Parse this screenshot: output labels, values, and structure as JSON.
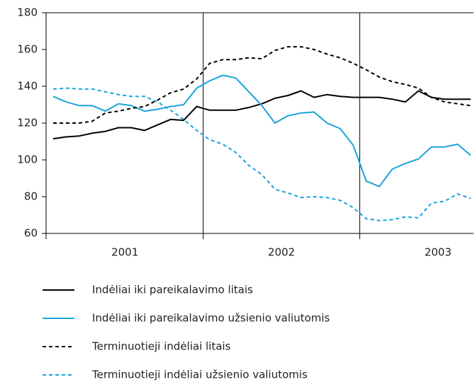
{
  "chart_data": {
    "type": "line",
    "categories": [
      null,
      null,
      null,
      null,
      null,
      null,
      "2001",
      null,
      null,
      null,
      null,
      null,
      null,
      null,
      null,
      null,
      null,
      null,
      "2002",
      null,
      null,
      null,
      null,
      null,
      null,
      null,
      null,
      null,
      null,
      null,
      "2003",
      null,
      null
    ],
    "ylim": [
      60,
      180
    ],
    "yticks": [
      60,
      80,
      100,
      120,
      140,
      160,
      180
    ],
    "series": [
      {
        "name": "Indėliai iki pareikalavimo litais",
        "color": "#000000",
        "dash": false,
        "values": [
          111.5,
          112.5,
          113,
          114.5,
          115.5,
          117.5,
          117.5,
          116,
          119,
          122,
          121.5,
          129,
          127,
          127,
          127,
          128.5,
          130.5,
          133.5,
          135,
          137.5,
          134,
          135.5,
          134.5,
          134,
          134,
          134,
          133,
          131.5,
          137.5,
          134,
          133,
          133,
          133
        ]
      },
      {
        "name": "Indėliai iki pareikalavimo užsienio valiutomis",
        "color": "#1aa3dc",
        "dash": false,
        "values": [
          134.5,
          131.5,
          129.5,
          129.5,
          126.5,
          130.5,
          129.5,
          126.5,
          127.5,
          129,
          130,
          139,
          143,
          146,
          144.5,
          137,
          129.5,
          120,
          124,
          125.5,
          126,
          120,
          117,
          108,
          88.5,
          85.5,
          95,
          98,
          100.5,
          107,
          107,
          108.5,
          102.5
        ]
      },
      {
        "name": "Terminuotieji indėliai litais",
        "color": "#000000",
        "dash": true,
        "values": [
          120,
          120,
          120,
          121,
          125.5,
          126.5,
          128,
          129,
          132.5,
          136.5,
          138.5,
          144,
          152.5,
          154.5,
          154.5,
          155.5,
          155,
          159.5,
          161.5,
          161.5,
          160,
          157.5,
          155.5,
          152.5,
          149,
          145,
          142.5,
          141,
          139,
          134,
          131.5,
          130.5,
          129.5
        ]
      },
      {
        "name": "Terminuotieji indėliai užsienio valiutomis",
        "color": "#1aa3dc",
        "dash": true,
        "values": [
          138.5,
          139,
          138.5,
          138.5,
          137,
          135.5,
          134.5,
          134.5,
          131.5,
          127,
          122,
          116,
          111,
          108.5,
          104,
          97,
          92,
          84,
          82,
          79.5,
          80,
          79.5,
          78,
          74,
          68,
          67,
          67.5,
          69,
          68.5,
          76.5,
          77.5,
          81.5,
          79
        ]
      }
    ]
  }
}
